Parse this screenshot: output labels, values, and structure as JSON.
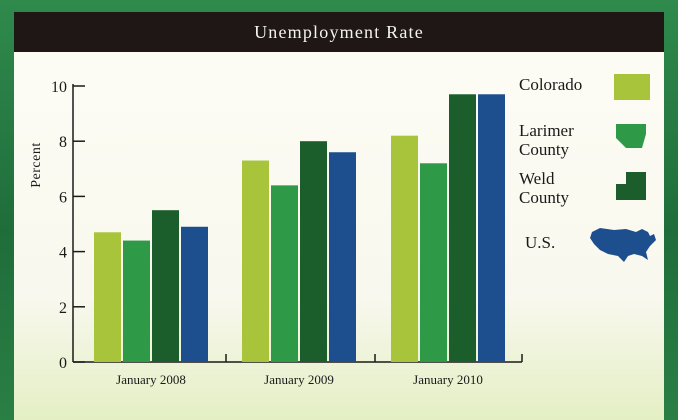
{
  "colors": {
    "colorado": "#a8c43a",
    "larimer": "#2e9a48",
    "weld": "#1b5e2c",
    "us": "#1d4f8e"
  },
  "chart_data": {
    "type": "bar",
    "title": "Unemployment Rate",
    "ylabel": "Percent",
    "xlabel": "",
    "ylim": [
      0,
      10
    ],
    "yticks": [
      0,
      2,
      4,
      6,
      8,
      10
    ],
    "grid": false,
    "legend_position": "right",
    "categories": [
      "January 2008",
      "January 2009",
      "January 2010"
    ],
    "series": [
      {
        "name": "Colorado",
        "values": [
          4.7,
          7.3,
          8.2
        ],
        "color_key": "colorado",
        "icon": "colorado-state-shape-icon"
      },
      {
        "name": "Larimer County",
        "values": [
          4.4,
          6.4,
          7.2
        ],
        "color_key": "larimer",
        "icon": "larimer-county-shape-icon"
      },
      {
        "name": "Weld County",
        "values": [
          5.5,
          8.0,
          9.7
        ],
        "color_key": "weld",
        "icon": "weld-county-shape-icon"
      },
      {
        "name": "U.S.",
        "values": [
          4.9,
          7.6,
          9.7
        ],
        "color_key": "us",
        "icon": "us-map-icon"
      }
    ]
  }
}
